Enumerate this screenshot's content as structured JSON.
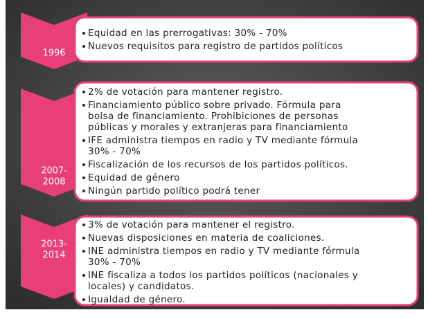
{
  "rows": [
    {
      "year": [
        "1996"
      ],
      "bullets": [
        [
          "Equidad en las prerrogativas: 30% - 70%"
        ],
        [
          "Nuevos requisitos para registro de partidos políticos"
        ]
      ]
    },
    {
      "year": [
        "2007-",
        "2008"
      ],
      "bullets": [
        [
          "2% de votación para mantener registro."
        ],
        [
          "Financiamiento público sobre privado. Fórmula para",
          "bolsa de financiamiento. Prohibiciones de personas",
          "públicas y morales y extranjeras para financiamiento"
        ],
        [
          "IFE administra tiempos en radio y TV mediante fórmula",
          "30% - 70%"
        ],
        [
          "Fiscalización de los recursos de los partidos políticos."
        ],
        [
          "Equidad de género"
        ],
        [
          "Ningún partido político podrá tener"
        ]
      ]
    },
    {
      "year": [
        "2013-",
        "2014"
      ],
      "bullets": [
        [
          "3% de votación para mantener el registro."
        ],
        [
          "Nuevas disposiciones en materia de coaliciones."
        ],
        [
          "INE administra tiempos en radio y TV mediante fórmula",
          "30% - 70%"
        ],
        [
          "INE fiscaliza a todos los partidos políticos (nacionales y",
          "locales) y candidatos."
        ],
        [
          "Igualdad de género."
        ]
      ]
    }
  ]
}
